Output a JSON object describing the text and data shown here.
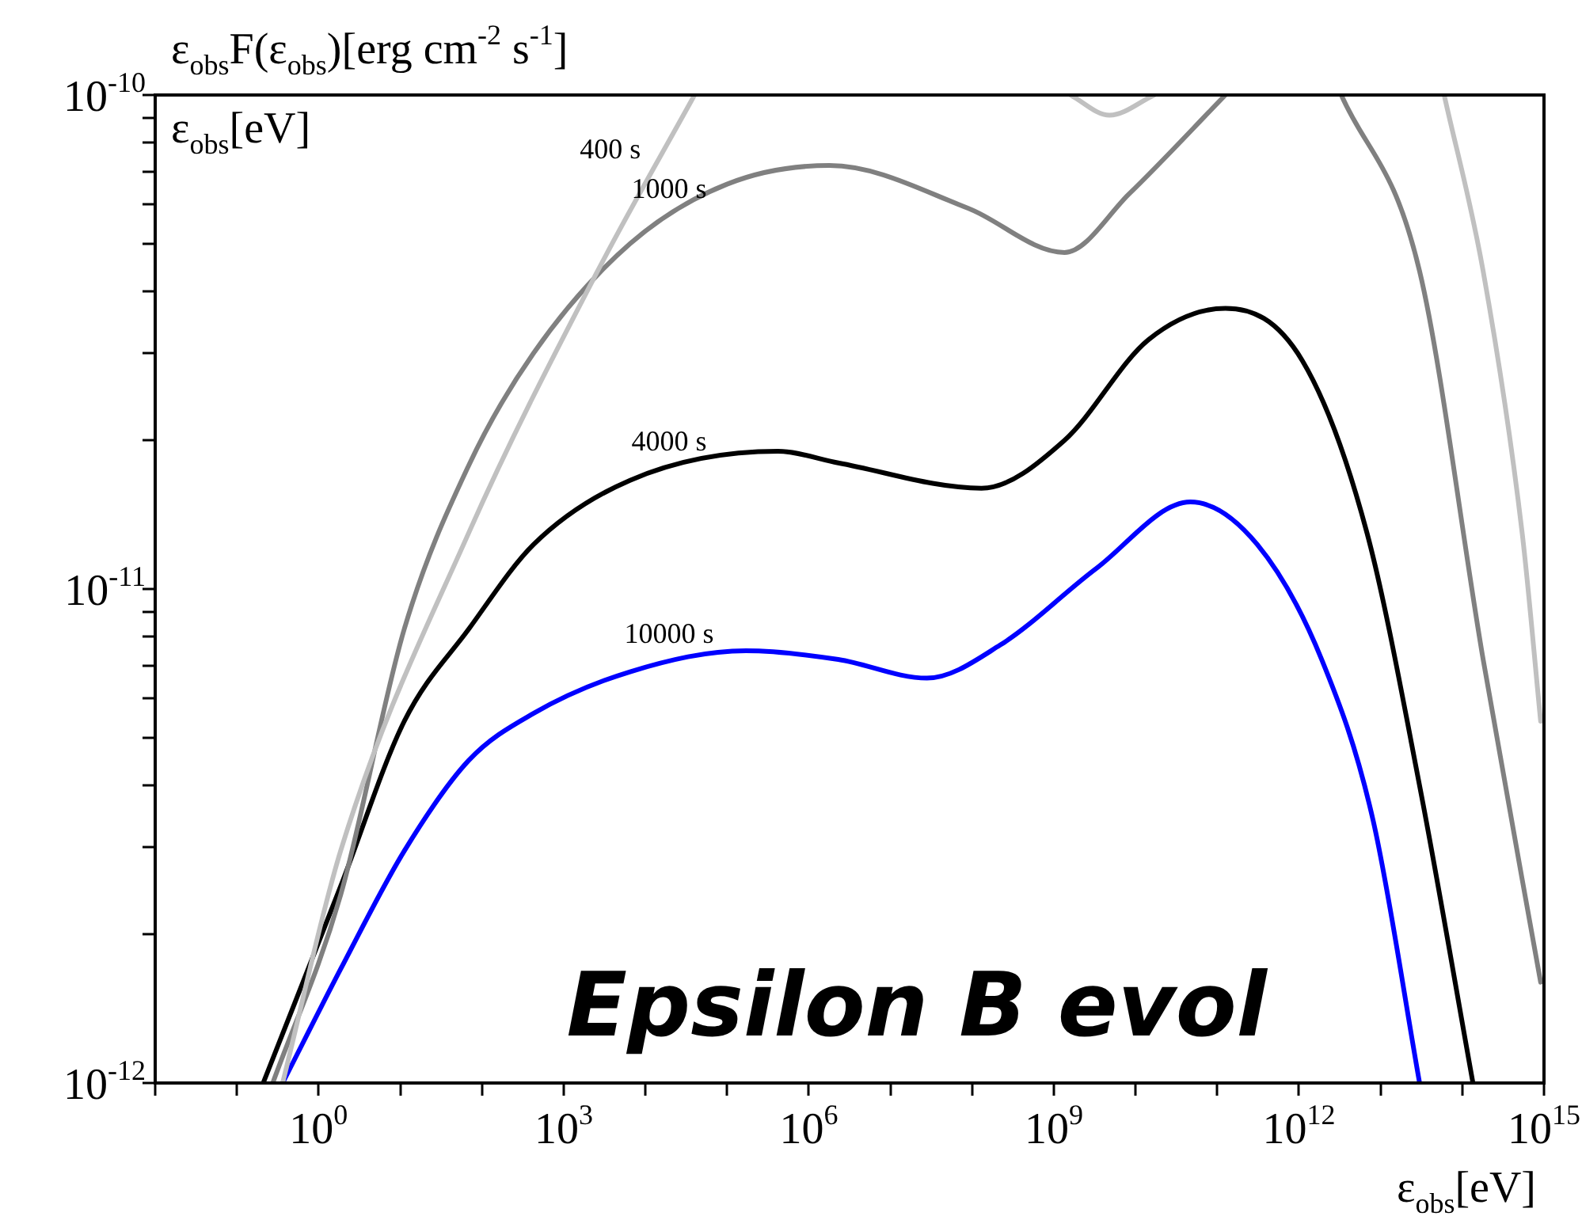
{
  "chart_data": {
    "type": "line",
    "ylabel": "ε$_{obs}$F(ε$_{obs}$)[erg cm$^{-2}$ s$^{-1}$]",
    "xlabel": "ε$_{obs}$[eV]",
    "log": "xy",
    "grid": false,
    "legend": false,
    "marker": "none",
    "line_style": "solid",
    "xlim": [
      0.01,
      1000000000000000.0
    ],
    "ylim": [
      1e-12,
      1e-10
    ],
    "xticks": [
      {
        "value": 0.01,
        "label": null
      },
      {
        "value": 0.1,
        "label": null
      },
      {
        "value": 1,
        "label": "10$^{0}$"
      },
      {
        "value": 10,
        "label": null
      },
      {
        "value": 100,
        "label": null
      },
      {
        "value": 1000,
        "label": "10$^{3}$"
      },
      {
        "value": 10000.0,
        "label": null
      },
      {
        "value": 100000.0,
        "label": null
      },
      {
        "value": 1000000.0,
        "label": "10$^{6}$"
      },
      {
        "value": 10000000.0,
        "label": null
      },
      {
        "value": 100000000.0,
        "label": null
      },
      {
        "value": 1000000000.0,
        "label": "10$^{9}$"
      },
      {
        "value": 10000000000.0,
        "label": null
      },
      {
        "value": 100000000000.0,
        "label": null
      },
      {
        "value": 1000000000000.0,
        "label": "10$^{12}$"
      },
      {
        "value": 10000000000000.0,
        "label": null
      },
      {
        "value": 100000000000000.0,
        "label": null
      },
      {
        "value": 1000000000000000.0,
        "label": "10$^{15}$"
      }
    ],
    "yticks": [
      {
        "value": 1e-12,
        "label": "10$^{-12}$"
      },
      {
        "value": 2e-12,
        "label": null
      },
      {
        "value": 3e-12,
        "label": null
      },
      {
        "value": 4e-12,
        "label": null
      },
      {
        "value": 5e-12,
        "label": null
      },
      {
        "value": 6e-12,
        "label": null
      },
      {
        "value": 7e-12,
        "label": null
      },
      {
        "value": 8e-12,
        "label": null
      },
      {
        "value": 9e-12,
        "label": null
      },
      {
        "value": 1e-11,
        "label": "10$^{-11}$"
      },
      {
        "value": 2e-11,
        "label": null
      },
      {
        "value": 3e-11,
        "label": null
      },
      {
        "value": 4e-11,
        "label": null
      },
      {
        "value": 5e-11,
        "label": null
      },
      {
        "value": 6e-11,
        "label": null
      },
      {
        "value": 7e-11,
        "label": null
      },
      {
        "value": 8e-11,
        "label": null
      },
      {
        "value": 9e-11,
        "label": null
      },
      {
        "value": 1e-10,
        "label": "10$^{-10}$"
      }
    ],
    "series": [
      {
        "name": "400 s",
        "color": "#c0c0c0",
        "x": [
          0.363,
          1.86,
          69,
          2600,
          40000.0,
          null,
          1600000000.0,
          4800000000.0,
          17000000000.0,
          null,
          60000000000000.0,
          180000000000000.0,
          540000000000000.0,
          910000000000000.0
        ],
        "values": [
          1e-12,
          2.95e-12,
          1.3e-11,
          4.4e-11,
          1e-10,
          null,
          1e-10,
          9.1e-11,
          1e-10,
          null,
          1e-10,
          4.4e-11,
          1.3e-11,
          5.4e-12
        ]
      },
      {
        "name": "1000 s",
        "color": "#808080",
        "x": [
          0.275,
          1.86,
          11.2,
          69,
          427,
          6500,
          100000.0,
          1800000.0,
          89000000.0,
          1350000000.0,
          8300000000.0,
          126000000000.0,
          null,
          3300000000000.0,
          30000000000000.0,
          180000000000000.0,
          910000000000000.0
        ],
        "values": [
          1e-12,
          2.4e-12,
          8.3e-12,
          1.78e-11,
          3e-11,
          5e-11,
          6.6e-11,
          7.2e-11,
          5.9e-11,
          4.8e-11,
          6.3e-11,
          1e-10,
          null,
          1e-10,
          4.4e-11,
          7.2e-12,
          1.6e-12
        ]
      },
      {
        "name": "4000 s",
        "color": "#000000",
        "x": [
          0.21,
          1.86,
          11.2,
          69,
          427,
          6500,
          420000.0,
          2300000.0,
          130000000.0,
          1350000000.0,
          14500000000.0,
          126000000000.0,
          1100000000000.0,
          6800000000000.0,
          30000000000000.0,
          135000000000000.0
        ],
        "values": [
          1e-12,
          2.5e-12,
          5.4e-12,
          8.3e-12,
          1.23e-11,
          1.66e-11,
          1.9e-11,
          1.8e-11,
          1.6e-11,
          2e-11,
          3.2e-11,
          3.7e-11,
          2.9e-11,
          1.3e-11,
          4e-12,
          1e-12
        ]
      },
      {
        "name": "10000 s",
        "color": "#0000ff",
        "x": [
          0.363,
          1.86,
          11.2,
          69,
          427,
          6500,
          170000.0,
          2300000.0,
          28000000.0,
          220000000.0,
          3300000000.0,
          47000000000.0,
          310000000000.0,
          1900000000000.0,
          8100000000000.0,
          30000000000000.0
        ],
        "values": [
          1e-12,
          1.7e-12,
          2.95e-12,
          4.5e-12,
          5.6e-12,
          6.8e-12,
          7.5e-12,
          7.2e-12,
          6.6e-12,
          7.7e-12,
          1.1e-11,
          1.5e-11,
          1.23e-11,
          7.2e-12,
          3.4e-12,
          1e-12
        ]
      }
    ],
    "annotations": [
      "Epsilon B evol",
      "ε$_{obs}$[eV]"
    ]
  }
}
